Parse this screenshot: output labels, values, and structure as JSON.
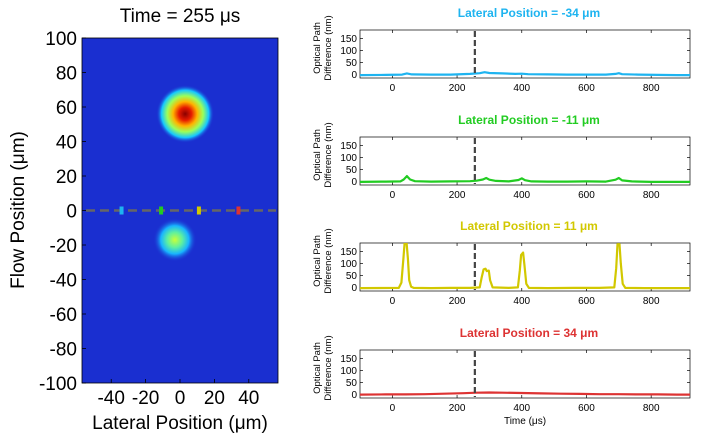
{
  "chart_data": [
    {
      "type": "heatmap",
      "title": "Time = 255 μs",
      "xlabel": "Lateral Position (μm)",
      "ylabel": "Flow Position (μm)",
      "xlim": [
        -57,
        57
      ],
      "ylim": [
        -100,
        100
      ],
      "xticks": [
        -40,
        -20,
        0,
        20,
        40
      ],
      "xtick_labels": [
        "-40",
        "-20",
        "0",
        "20",
        "40"
      ],
      "yticks": [
        100,
        80,
        60,
        40,
        20,
        0,
        -20,
        -40,
        -60,
        -80,
        -100
      ],
      "ytick_labels": [
        "100",
        "80",
        "60",
        "40",
        "20",
        "0",
        "-20",
        "-40",
        "-60",
        "-80",
        "-100"
      ],
      "colormap": "jet",
      "background_color": "#1a2fd0",
      "blobs": [
        {
          "x": 3,
          "y": 56,
          "radius": 8,
          "intensity": 1.0
        },
        {
          "x": -3,
          "y": -17,
          "radius": 6,
          "intensity": 0.45
        }
      ],
      "scan_line": {
        "y": 0,
        "color": "#666666",
        "style": "dashed"
      },
      "markers": [
        {
          "x": -34,
          "y": 0,
          "color": "#1eb4f0"
        },
        {
          "x": -11,
          "y": 0,
          "color": "#22cc22"
        },
        {
          "x": 11,
          "y": 0,
          "color": "#d2c800"
        },
        {
          "x": 34,
          "y": 0,
          "color": "#dd3333"
        }
      ]
    },
    {
      "type": "line",
      "title": "Lateral Position = -34 μm",
      "title_color": "#1eb4f0",
      "ylabel": [
        "Optical Path",
        "Difference (nm)"
      ],
      "xlabel": "",
      "xlim": [
        -100,
        920
      ],
      "ylim": [
        -15,
        185
      ],
      "xticks": [
        0,
        200,
        400,
        600,
        800
      ],
      "xtick_labels": [
        "0",
        "200",
        "400",
        "600",
        "800"
      ],
      "yticks": [
        0,
        50,
        100,
        150
      ],
      "ytick_labels": [
        "0",
        "50",
        "100",
        "150"
      ],
      "vline": 255,
      "color": "#1eb4f0",
      "x": [
        -100,
        -20,
        30,
        45,
        60,
        120,
        180,
        240,
        270,
        285,
        300,
        340,
        380,
        400,
        420,
        480,
        540,
        600,
        660,
        690,
        700,
        710,
        760,
        820,
        880,
        920
      ],
      "y": [
        -3,
        -2,
        -1,
        4,
        0,
        -1,
        -1,
        2,
        5,
        9,
        6,
        4,
        2,
        3,
        1,
        0,
        -1,
        -1,
        -1,
        2,
        5,
        1,
        -1,
        -2,
        -3,
        -3
      ]
    },
    {
      "type": "line",
      "title": "Lateral Position = -11 μm",
      "title_color": "#22cc22",
      "ylabel": [
        "Optical Path",
        "Difference (nm)"
      ],
      "xlabel": "",
      "xlim": [
        -100,
        920
      ],
      "ylim": [
        -15,
        185
      ],
      "xticks": [
        0,
        200,
        400,
        600,
        800
      ],
      "xtick_labels": [
        "0",
        "200",
        "400",
        "600",
        "800"
      ],
      "yticks": [
        0,
        50,
        100,
        150
      ],
      "ytick_labels": [
        "0",
        "50",
        "100",
        "150"
      ],
      "vline": 255,
      "color": "#22cc22",
      "x": [
        -100,
        -20,
        25,
        35,
        45,
        55,
        70,
        120,
        180,
        240,
        260,
        280,
        290,
        300,
        320,
        360,
        390,
        400,
        410,
        430,
        480,
        540,
        600,
        660,
        690,
        700,
        710,
        740,
        800,
        860,
        920
      ],
      "y": [
        -2,
        -1,
        0,
        8,
        22,
        8,
        1,
        -1,
        0,
        1,
        3,
        8,
        14,
        7,
        2,
        0,
        6,
        13,
        5,
        0,
        -1,
        -1,
        0,
        -1,
        7,
        14,
        4,
        0,
        -2,
        -2,
        -2
      ]
    },
    {
      "type": "line",
      "title": "Lateral Position = 11 μm",
      "title_color": "#d2c800",
      "ylabel": [
        "Optical Path",
        "Difference (nm)"
      ],
      "xlabel": "",
      "xlim": [
        -100,
        920
      ],
      "ylim": [
        -15,
        185
      ],
      "xticks": [
        0,
        200,
        400,
        600,
        800
      ],
      "xtick_labels": [
        "0",
        "200",
        "400",
        "600",
        "800"
      ],
      "yticks": [
        0,
        50,
        100,
        150
      ],
      "ytick_labels": [
        "0",
        "50",
        "100",
        "150"
      ],
      "vline": 255,
      "color": "#d2c800",
      "x": [
        -100,
        20,
        28,
        34,
        38,
        44,
        48,
        52,
        58,
        66,
        120,
        180,
        240,
        270,
        276,
        282,
        288,
        292,
        298,
        302,
        310,
        360,
        388,
        394,
        398,
        404,
        408,
        414,
        422,
        480,
        560,
        640,
        686,
        692,
        696,
        702,
        706,
        712,
        720,
        780,
        850,
        920
      ],
      "y": [
        -3,
        -2,
        20,
        120,
        185,
        185,
        120,
        30,
        3,
        -2,
        -3,
        -2,
        -2,
        0,
        40,
        75,
        78,
        68,
        70,
        30,
        0,
        -2,
        0,
        70,
        135,
        145,
        95,
        15,
        -2,
        -3,
        -2,
        -2,
        0,
        80,
        180,
        180,
        100,
        15,
        -2,
        -3,
        -3,
        -3
      ]
    },
    {
      "type": "line",
      "title": "Lateral Position = 34 μm",
      "title_color": "#dd3333",
      "ylabel": [
        "Optical Path",
        "Difference (nm)"
      ],
      "xlabel": "Time (μs)",
      "xlim": [
        -100,
        920
      ],
      "ylim": [
        -15,
        185
      ],
      "xticks": [
        0,
        200,
        400,
        600,
        800
      ],
      "xtick_labels": [
        "0",
        "200",
        "400",
        "600",
        "800"
      ],
      "yticks": [
        0,
        50,
        100,
        150
      ],
      "ytick_labels": [
        "0",
        "50",
        "100",
        "150"
      ],
      "vline": 255,
      "color": "#dd3333",
      "x": [
        -100,
        -20,
        40,
        100,
        160,
        220,
        260,
        300,
        340,
        400,
        460,
        520,
        580,
        640,
        700,
        760,
        820,
        880,
        920
      ],
      "y": [
        -1,
        0,
        0,
        1,
        3,
        5,
        7,
        8,
        7,
        6,
        4,
        3,
        2,
        1,
        1,
        0,
        0,
        -1,
        -1
      ]
    }
  ]
}
